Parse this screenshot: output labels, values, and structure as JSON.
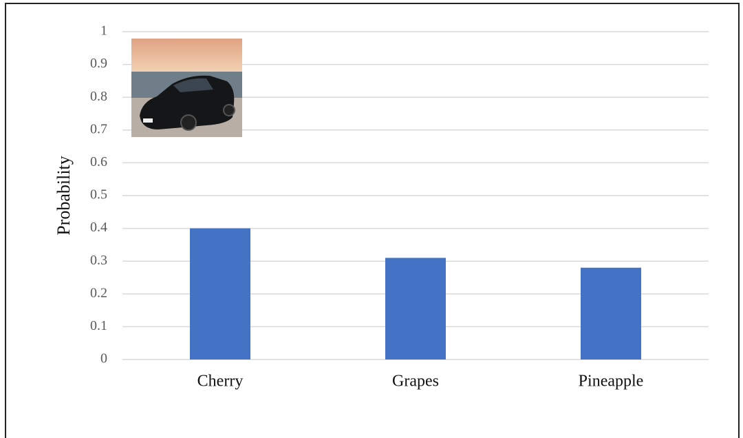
{
  "chart_data": {
    "type": "bar",
    "y_label": "Probability",
    "categories": [
      "Cherry",
      "Grapes",
      "Pineapple"
    ],
    "values": [
      0.4,
      0.31,
      0.28
    ],
    "color": "#4472c4",
    "ylim": [
      0,
      1
    ],
    "yticks": [
      0,
      0.1,
      0.2,
      0.3,
      0.4,
      0.5,
      0.6,
      0.7,
      0.8,
      0.9,
      1
    ],
    "grid": true
  }
}
